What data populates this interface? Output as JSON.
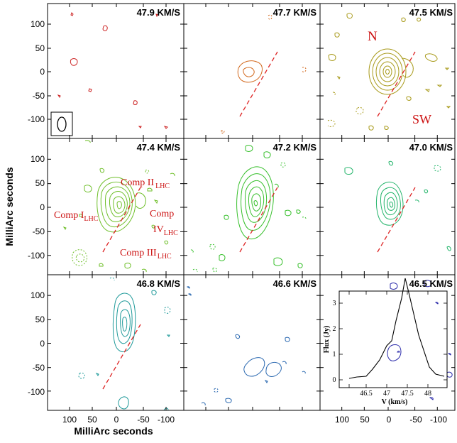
{
  "axes": {
    "xlabel": "MilliArc seconds",
    "ylabel": "MilliArc seconds",
    "x_ticks": [
      "100",
      "50",
      "0",
      "-50",
      "-100"
    ],
    "y_ticks": [
      "100",
      "50",
      "0",
      "-50",
      "-100"
    ]
  },
  "panels": [
    {
      "velocity": "47.9 KM/S",
      "color": "#cc2222"
    },
    {
      "velocity": "47.7 KM/S",
      "color": "#d2691e"
    },
    {
      "velocity": "47.5 KM/S",
      "color": "#a89a1a"
    },
    {
      "velocity": "47.4 KM/S",
      "color": "#6fbf2a"
    },
    {
      "velocity": "47.2 KM/S",
      "color": "#39c02e"
    },
    {
      "velocity": "47.0 KM/S",
      "color": "#22b46a"
    },
    {
      "velocity": "46.8 KM/S",
      "color": "#1f9a9a"
    },
    {
      "velocity": "46.6 KM/S",
      "color": "#2a68b0"
    },
    {
      "velocity": "46.5 KM/S",
      "color": "#2a2aaa"
    }
  ],
  "labels": {
    "n": "N",
    "sw": "SW",
    "comp1": {
      "main": "Comp I",
      "sub": "LHC"
    },
    "comp2": {
      "main": "Comp II",
      "sub": "LHC"
    },
    "comp3": {
      "main": "Comp III",
      "sub": "LHC"
    },
    "comp4": {
      "main": "Comp",
      "line2": "IV",
      "sub": "LHC"
    }
  },
  "inset": {
    "xlabel": "V (km/s)",
    "ylabel": "Flux (Jy)",
    "x_ticks": [
      "46.5",
      "47",
      "47.5",
      "48"
    ],
    "y_ticks": [
      "0",
      "1",
      "2",
      "3"
    ]
  }
}
